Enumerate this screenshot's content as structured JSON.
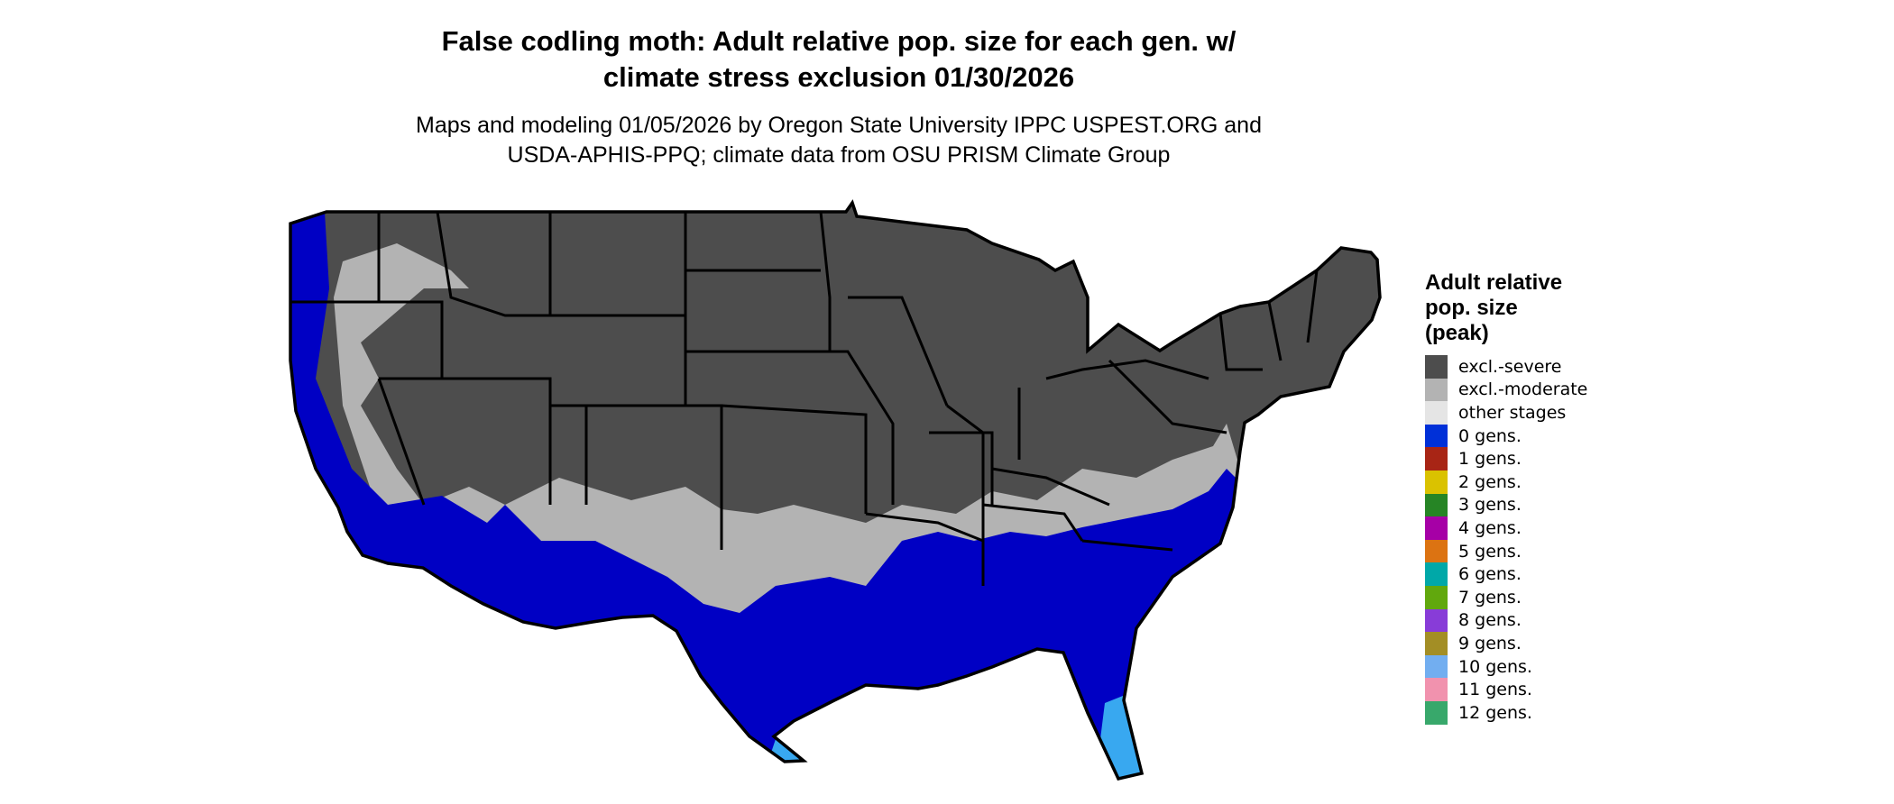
{
  "title_line1": "False codling moth: Adult relative pop. size for each gen. w/",
  "title_line2": "climate stress exclusion 01/30/2026",
  "subtitle_line1": "Maps and modeling 01/05/2026 by Oregon State University IPPC USPEST.ORG and",
  "subtitle_line2": "USDA-APHIS-PPQ; climate data from OSU PRISM Climate Group",
  "map_colors": {
    "excl_severe": "#4d4d4d",
    "excl_moderate": "#b3b3b3",
    "zero_gens": "#0000c4",
    "ten_gens_area": "#38a8f0",
    "border": "#000000"
  },
  "legend": {
    "title_lines": [
      "Adult relative",
      "pop. size",
      "(peak)"
    ],
    "items": [
      {
        "label": "excl.-severe",
        "color": "#4d4d4d"
      },
      {
        "label": "excl.-moderate",
        "color": "#b3b3b3"
      },
      {
        "label": "other stages",
        "color": "#e5e5e5"
      },
      {
        "label": "0 gens.",
        "color": "#0030d8"
      },
      {
        "label": "1 gens.",
        "color": "#a82515"
      },
      {
        "label": "2 gens.",
        "color": "#dac200"
      },
      {
        "label": "3 gens.",
        "color": "#268525"
      },
      {
        "label": "4 gens.",
        "color": "#a600a6"
      },
      {
        "label": "5 gens.",
        "color": "#dc7312"
      },
      {
        "label": "6 gens.",
        "color": "#00a8a8"
      },
      {
        "label": "7 gens.",
        "color": "#61a80d"
      },
      {
        "label": "8 gens.",
        "color": "#883cd8"
      },
      {
        "label": "9 gens.",
        "color": "#a38e25"
      },
      {
        "label": "10 gens.",
        "color": "#72aef0"
      },
      {
        "label": "11 gens.",
        "color": "#f192ae"
      },
      {
        "label": "12 gens.",
        "color": "#38a86b"
      }
    ]
  }
}
